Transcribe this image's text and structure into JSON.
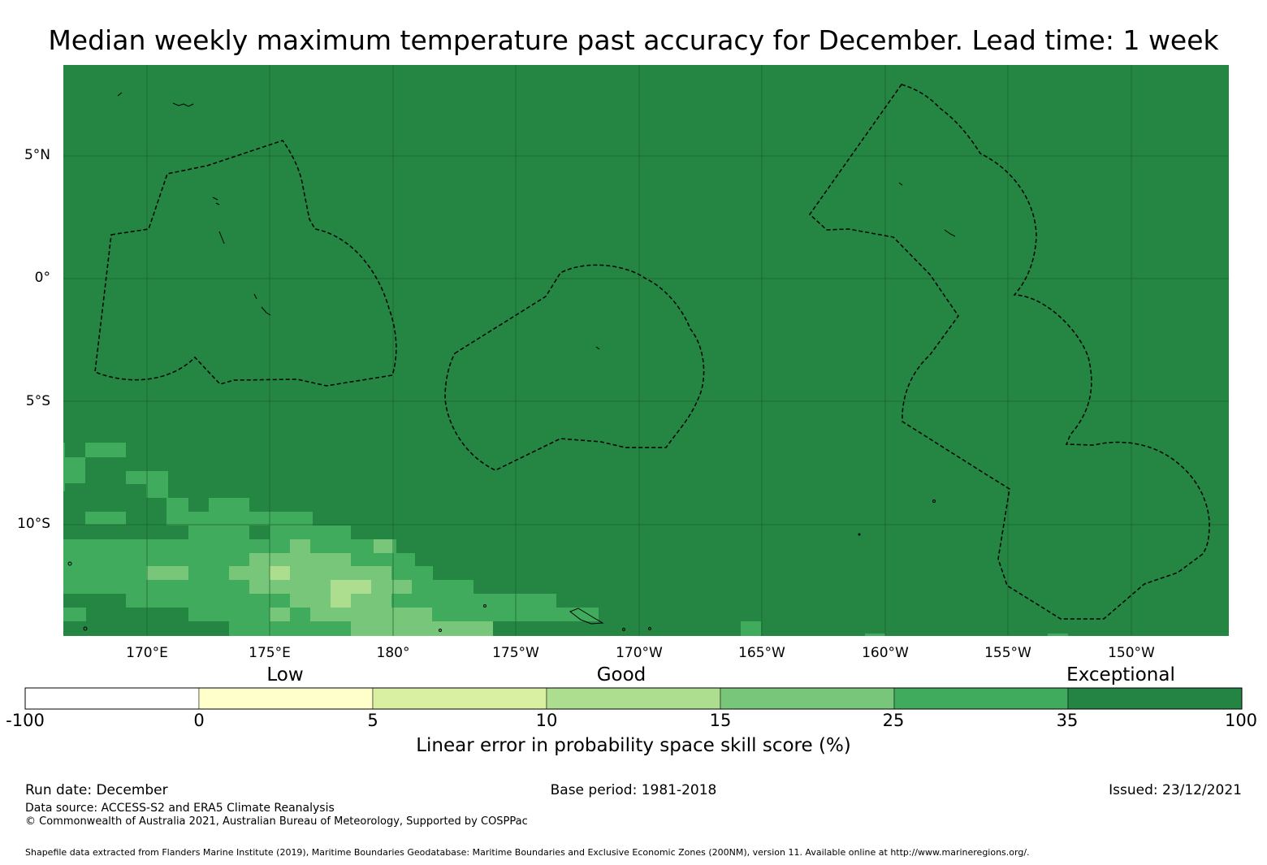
{
  "title": "Median weekly maximum temperature past accuracy for December. Lead time: 1 week",
  "map": {
    "background_color": "#248642",
    "lat_labels": [
      "5°N",
      "0°",
      "5°S",
      "10°S"
    ],
    "lon_labels": [
      "170°E",
      "175°E",
      "180°",
      "175°W",
      "170°W",
      "165°W",
      "160°W",
      "155°W",
      "150°W"
    ]
  },
  "legend": {
    "categories": [
      "Low",
      "Good",
      "Exceptional"
    ],
    "ticks": [
      "-100",
      "0",
      "5",
      "10",
      "15",
      "25",
      "35",
      "100"
    ],
    "colors": [
      "#ffffff",
      "#ffffcc",
      "#d9f0a3",
      "#addd8e",
      "#78c679",
      "#41ab5d",
      "#238443"
    ],
    "title": "Linear error in probability space skill score (%)"
  },
  "footer": {
    "run_date": "Run date: December",
    "base_period": "Base period: 1981-2018",
    "issued": "Issued: 23/12/2021",
    "data_source": "Data source: ACCESS-S2 and ERA5 Climate Reanalysis",
    "copyright": "© Commonwealth of Australia 2021, Australian Bureau of Meteorology, Supported by COSPPac",
    "shapefile": "Shapefile data extracted from Flanders Marine Institute (2019), Maritime Boundaries Geodatabase: Maritime Boundaries and Exclusive Economic Zones (200NM), version 11. Available online at http://www.marineregions.org/."
  }
}
